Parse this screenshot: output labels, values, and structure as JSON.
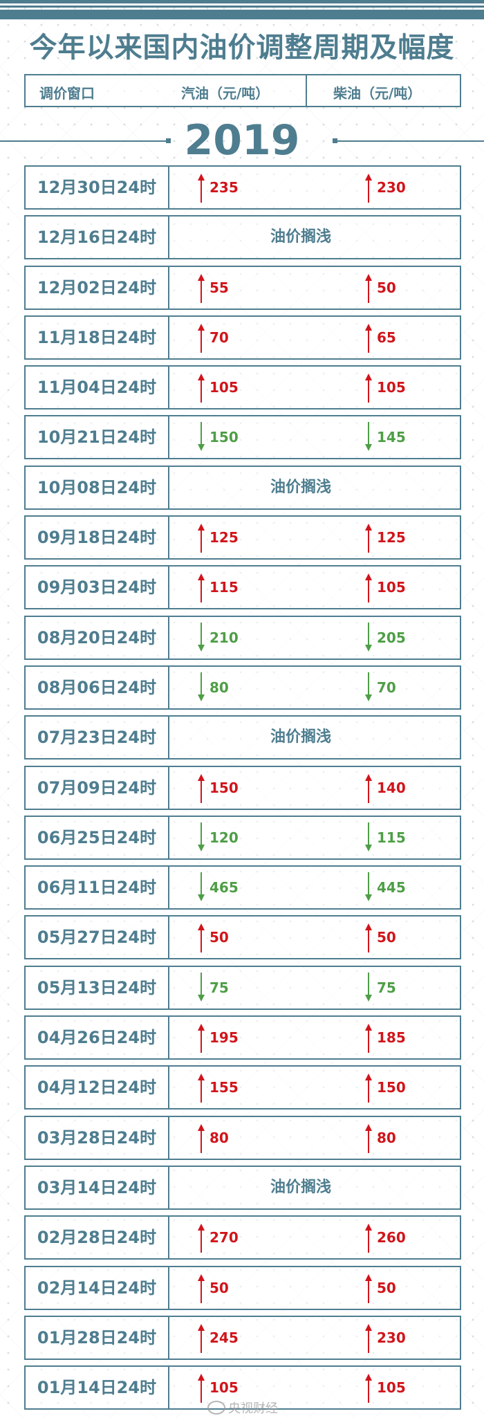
{
  "title": "今年以来国内油价调整周期及幅度",
  "header": {
    "window": "调价窗口",
    "gasoline": "汽油（元/吨）",
    "diesel": "柴油（元/吨）"
  },
  "year": "2019",
  "colors": {
    "accent": "#4e7d8f",
    "up": "#d0151b",
    "down": "#4e9e46"
  },
  "rows": [
    {
      "date": "12月30日24时",
      "gasoline": {
        "dir": "up",
        "value": "235"
      },
      "diesel": {
        "dir": "up",
        "value": "230"
      }
    },
    {
      "date": "12月16日24时",
      "note": "油价搁浅"
    },
    {
      "date": "12月02日24时",
      "gasoline": {
        "dir": "up",
        "value": "55"
      },
      "diesel": {
        "dir": "up",
        "value": "50"
      }
    },
    {
      "date": "11月18日24时",
      "gasoline": {
        "dir": "up",
        "value": "70"
      },
      "diesel": {
        "dir": "up",
        "value": "65"
      }
    },
    {
      "date": "11月04日24时",
      "gasoline": {
        "dir": "up",
        "value": "105"
      },
      "diesel": {
        "dir": "up",
        "value": "105"
      }
    },
    {
      "date": "10月21日24时",
      "gasoline": {
        "dir": "down",
        "value": "150"
      },
      "diesel": {
        "dir": "down",
        "value": "145"
      }
    },
    {
      "date": "10月08日24时",
      "note": "油价搁浅"
    },
    {
      "date": "09月18日24时",
      "gasoline": {
        "dir": "up",
        "value": "125"
      },
      "diesel": {
        "dir": "up",
        "value": "125"
      }
    },
    {
      "date": "09月03日24时",
      "gasoline": {
        "dir": "up",
        "value": "115"
      },
      "diesel": {
        "dir": "up",
        "value": "105"
      }
    },
    {
      "date": "08月20日24时",
      "gasoline": {
        "dir": "down",
        "value": "210"
      },
      "diesel": {
        "dir": "down",
        "value": "205"
      }
    },
    {
      "date": "08月06日24时",
      "gasoline": {
        "dir": "down",
        "value": "80"
      },
      "diesel": {
        "dir": "down",
        "value": "70"
      }
    },
    {
      "date": "07月23日24时",
      "note": "油价搁浅"
    },
    {
      "date": "07月09日24时",
      "gasoline": {
        "dir": "up",
        "value": "150"
      },
      "diesel": {
        "dir": "up",
        "value": "140"
      }
    },
    {
      "date": "06月25日24时",
      "gasoline": {
        "dir": "down",
        "value": "120"
      },
      "diesel": {
        "dir": "down",
        "value": "115"
      }
    },
    {
      "date": "06月11日24时",
      "gasoline": {
        "dir": "down",
        "value": "465"
      },
      "diesel": {
        "dir": "down",
        "value": "445"
      }
    },
    {
      "date": "05月27日24时",
      "gasoline": {
        "dir": "up",
        "value": "50"
      },
      "diesel": {
        "dir": "up",
        "value": "50"
      }
    },
    {
      "date": "05月13日24时",
      "gasoline": {
        "dir": "down",
        "value": "75"
      },
      "diesel": {
        "dir": "down",
        "value": "75"
      }
    },
    {
      "date": "04月26日24时",
      "gasoline": {
        "dir": "up",
        "value": "195"
      },
      "diesel": {
        "dir": "up",
        "value": "185"
      }
    },
    {
      "date": "04月12日24时",
      "gasoline": {
        "dir": "up",
        "value": "155"
      },
      "diesel": {
        "dir": "up",
        "value": "150"
      }
    },
    {
      "date": "03月28日24时",
      "gasoline": {
        "dir": "up",
        "value": "80"
      },
      "diesel": {
        "dir": "up",
        "value": "80"
      }
    },
    {
      "date": "03月14日24时",
      "note": "油价搁浅"
    },
    {
      "date": "02月28日24时",
      "gasoline": {
        "dir": "up",
        "value": "270"
      },
      "diesel": {
        "dir": "up",
        "value": "260"
      }
    },
    {
      "date": "02月14日24时",
      "gasoline": {
        "dir": "up",
        "value": "50"
      },
      "diesel": {
        "dir": "up",
        "value": "50"
      }
    },
    {
      "date": "01月28日24时",
      "gasoline": {
        "dir": "up",
        "value": "245"
      },
      "diesel": {
        "dir": "up",
        "value": "230"
      }
    },
    {
      "date": "01月14日24时",
      "gasoline": {
        "dir": "up",
        "value": "105"
      },
      "diesel": {
        "dir": "up",
        "value": "105"
      }
    }
  ],
  "watermark": "央视财经"
}
